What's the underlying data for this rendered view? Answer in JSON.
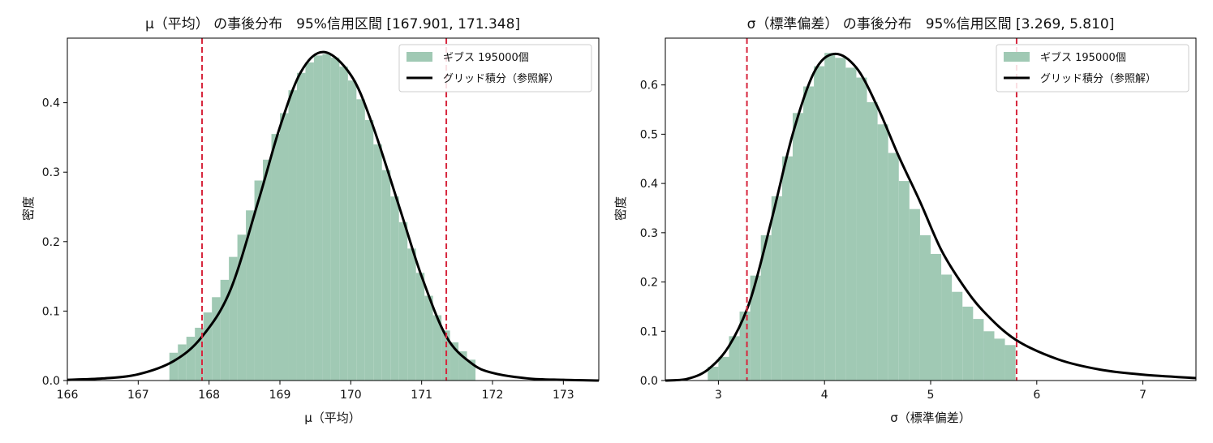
{
  "chart_data": [
    {
      "type": "bar",
      "title": "μ（平均） の事後分布　95%信用区間 [167.901, 171.348]",
      "xlabel": "μ（平均）",
      "ylabel": "密度",
      "xlim": [
        166,
        173.5
      ],
      "ylim": [
        0,
        0.493
      ],
      "xticks": [
        "166",
        "167",
        "168",
        "169",
        "170",
        "171",
        "172",
        "173"
      ],
      "yticks": [
        "0.0",
        "0.1",
        "0.2",
        "0.3",
        "0.4"
      ],
      "grid": false,
      "legend_position": "top-right",
      "credible_interval": [
        167.901,
        171.348
      ],
      "colors": {
        "histogram": "#a0c9b4",
        "curve": "#000000",
        "interval": "#d7263d"
      },
      "series": [
        {
          "name": "ギブス 195000個",
          "kind": "histogram",
          "bin_width": 0.12,
          "x": [
            167.5,
            167.62,
            167.74,
            167.86,
            167.98,
            168.1,
            168.22,
            168.34,
            168.46,
            168.58,
            168.7,
            168.82,
            168.94,
            169.06,
            169.18,
            169.3,
            169.42,
            169.54,
            169.66,
            169.78,
            169.9,
            170.02,
            170.14,
            170.26,
            170.38,
            170.5,
            170.62,
            170.74,
            170.86,
            170.98,
            171.1,
            171.22,
            171.34,
            171.46,
            171.58,
            171.7
          ],
          "values": [
            0.04,
            0.052,
            0.063,
            0.076,
            0.098,
            0.12,
            0.145,
            0.178,
            0.21,
            0.245,
            0.288,
            0.318,
            0.355,
            0.385,
            0.418,
            0.443,
            0.458,
            0.468,
            0.47,
            0.465,
            0.452,
            0.432,
            0.405,
            0.375,
            0.34,
            0.303,
            0.265,
            0.228,
            0.19,
            0.155,
            0.122,
            0.094,
            0.072,
            0.055,
            0.042,
            0.03
          ]
        },
        {
          "name": "グリッド積分（参照解）",
          "kind": "line",
          "peak_x": 169.62,
          "peak_y": 0.473,
          "x": [
            166,
            166.5,
            167,
            167.5,
            167.9,
            168.3,
            168.7,
            169,
            169.3,
            169.62,
            170,
            170.3,
            170.7,
            171,
            171.35,
            171.7,
            172,
            172.5,
            173,
            173.5
          ],
          "values": [
            0.001,
            0.003,
            0.009,
            0.028,
            0.063,
            0.13,
            0.26,
            0.365,
            0.445,
            0.473,
            0.44,
            0.37,
            0.245,
            0.15,
            0.063,
            0.025,
            0.011,
            0.003,
            0.001,
            0.0
          ]
        }
      ]
    },
    {
      "type": "bar",
      "title": "σ（標準偏差） の事後分布　95%信用区間 [3.269, 5.810]",
      "xlabel": "σ（標準偏差）",
      "ylabel": "密度",
      "xlim": [
        2.5,
        7.5
      ],
      "ylim": [
        0,
        0.695
      ],
      "xticks": [
        "3",
        "4",
        "5",
        "6",
        "7"
      ],
      "yticks": [
        "0.0",
        "0.1",
        "0.2",
        "0.3",
        "0.4",
        "0.5",
        "0.6"
      ],
      "grid": false,
      "legend_position": "top-right",
      "credible_interval": [
        3.269,
        5.81
      ],
      "colors": {
        "histogram": "#a0c9b4",
        "curve": "#000000",
        "interval": "#d7263d"
      },
      "series": [
        {
          "name": "ギブス 195000個",
          "kind": "histogram",
          "bin_width": 0.1,
          "x": [
            2.95,
            3.05,
            3.15,
            3.25,
            3.35,
            3.45,
            3.55,
            3.65,
            3.75,
            3.85,
            3.95,
            4.05,
            4.15,
            4.25,
            4.35,
            4.45,
            4.55,
            4.65,
            4.75,
            4.85,
            4.95,
            5.05,
            5.15,
            5.25,
            5.35,
            5.45,
            5.55,
            5.65,
            5.75
          ],
          "values": [
            0.028,
            0.048,
            0.09,
            0.14,
            0.213,
            0.295,
            0.374,
            0.455,
            0.543,
            0.597,
            0.638,
            0.665,
            0.655,
            0.635,
            0.615,
            0.565,
            0.52,
            0.462,
            0.405,
            0.348,
            0.295,
            0.257,
            0.215,
            0.18,
            0.15,
            0.125,
            0.1,
            0.085,
            0.072
          ]
        },
        {
          "name": "グリッド積分（参照解）",
          "kind": "line",
          "peak_x": 4.09,
          "peak_y": 0.663,
          "x": [
            2.5,
            2.7,
            2.9,
            3.1,
            3.3,
            3.5,
            3.7,
            3.9,
            4.09,
            4.3,
            4.5,
            4.7,
            4.9,
            5.1,
            5.3,
            5.5,
            5.8,
            6.2,
            6.6,
            7,
            7.5
          ],
          "values": [
            0.0,
            0.003,
            0.022,
            0.07,
            0.163,
            0.325,
            0.5,
            0.625,
            0.663,
            0.635,
            0.555,
            0.455,
            0.363,
            0.265,
            0.195,
            0.14,
            0.083,
            0.043,
            0.022,
            0.012,
            0.005
          ]
        }
      ]
    }
  ]
}
